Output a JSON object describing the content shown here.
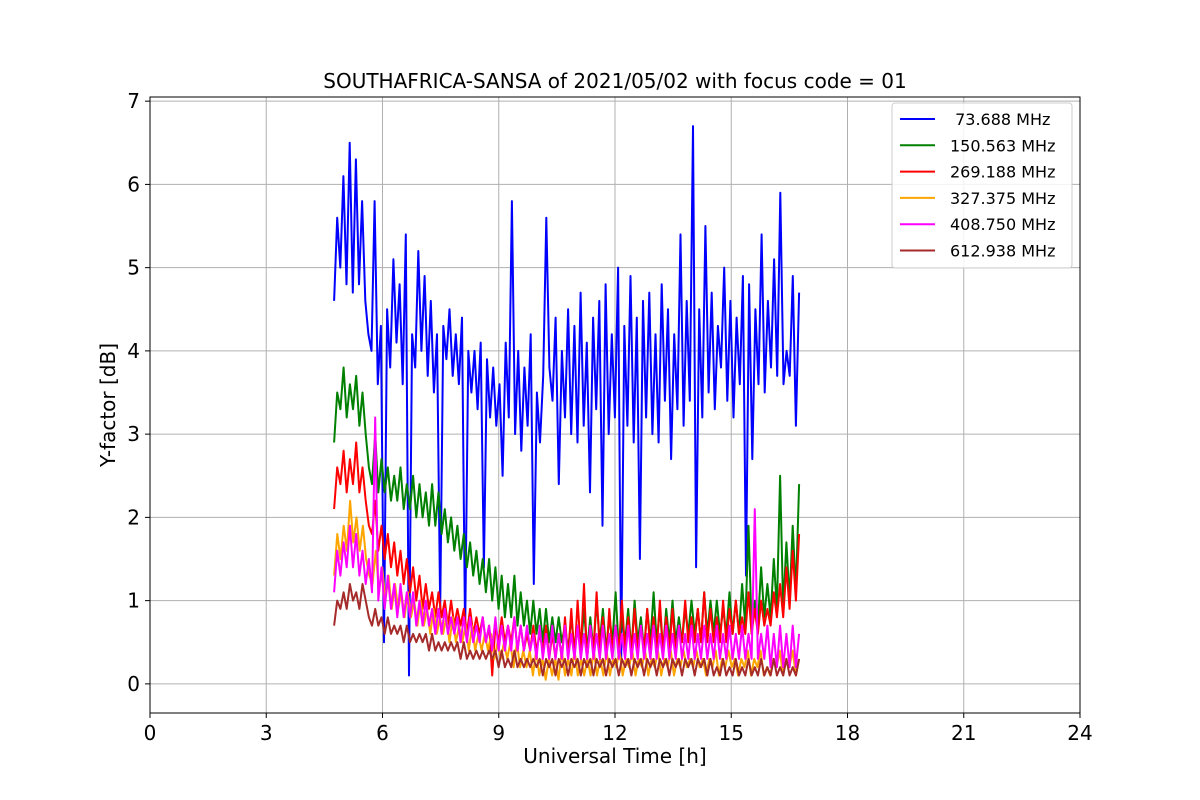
{
  "chart_data": {
    "type": "line",
    "title": "SOUTHAFRICA-SANSA of 2021/05/02 with focus code = 01",
    "xlabel": "Universal Time [h]",
    "ylabel": "Y-factor [dB]",
    "xlim": [
      0,
      24
    ],
    "ylim": [
      -0.35,
      7.05
    ],
    "xticks": [
      0,
      3,
      6,
      9,
      12,
      15,
      18,
      21,
      24
    ],
    "yticks": [
      0,
      1,
      2,
      3,
      4,
      5,
      6,
      7
    ],
    "xtick_labels": [
      "0",
      "3",
      "6",
      "9",
      "12",
      "15",
      "18",
      "21",
      "24"
    ],
    "ytick_labels": [
      "0",
      "1",
      "2",
      "3",
      "4",
      "5",
      "6",
      "7"
    ],
    "grid": true,
    "legend_position": "top-right",
    "x_start": 4.75,
    "x_end": 16.75,
    "series": [
      {
        "name": " 73.688 MHz",
        "color": "#0000ff",
        "values": [
          4.6,
          5.6,
          5.0,
          6.1,
          4.8,
          6.5,
          4.7,
          6.3,
          4.8,
          5.8,
          4.6,
          4.2,
          4.0,
          5.8,
          3.6,
          4.3,
          0.5,
          4.5,
          3.8,
          5.1,
          4.1,
          4.8,
          3.6,
          5.4,
          0.1,
          4.2,
          3.8,
          5.2,
          4.0,
          4.9,
          3.7,
          4.6,
          3.5,
          4.2,
          0.9,
          4.3,
          3.9,
          4.5,
          3.7,
          4.2,
          3.6,
          4.4,
          0.6,
          4.0,
          3.5,
          4.0,
          3.3,
          4.1,
          1.4,
          3.9,
          3.2,
          3.8,
          3.1,
          3.6,
          2.5,
          4.1,
          3.2,
          5.8,
          3.0,
          4.0,
          2.8,
          3.8,
          3.1,
          4.2,
          1.2,
          3.5,
          2.9,
          3.7,
          5.6,
          3.8,
          3.4,
          4.4,
          2.4,
          4.0,
          3.2,
          4.5,
          3.0,
          4.3,
          2.9,
          4.7,
          3.1,
          4.1,
          2.3,
          4.4,
          3.3,
          4.6,
          1.9,
          4.8,
          3.0,
          4.2,
          3.2,
          5.0,
          0.3,
          4.3,
          3.1,
          4.9,
          2.9,
          4.4,
          1.5,
          4.6,
          3.2,
          4.7,
          3.0,
          4.2,
          2.9,
          4.8,
          3.4,
          4.5,
          2.7,
          4.2,
          3.3,
          5.4,
          3.1,
          4.6,
          3.4,
          6.7,
          1.4,
          4.5,
          3.2,
          5.5,
          3.5,
          4.7,
          3.3,
          4.3,
          3.8,
          5.0,
          3.4,
          4.6,
          3.2,
          4.4,
          3.6,
          4.9,
          1.3,
          4.8,
          2.7,
          4.5,
          3.6,
          5.4,
          3.5,
          4.6,
          3.8,
          5.1,
          3.7,
          5.9,
          3.6,
          4.0,
          3.7,
          4.9,
          3.1,
          4.7
        ]
      },
      {
        "name": "150.563 MHz",
        "color": "#008000",
        "values": [
          2.9,
          3.5,
          3.3,
          3.8,
          3.2,
          3.6,
          3.3,
          3.7,
          3.1,
          3.5,
          3.0,
          2.6,
          2.4,
          3.0,
          2.3,
          2.7,
          2.3,
          2.6,
          2.2,
          2.5,
          2.2,
          2.6,
          2.1,
          2.4,
          2.1,
          2.5,
          2.0,
          2.4,
          2.0,
          2.3,
          1.9,
          2.4,
          1.9,
          2.3,
          1.8,
          2.1,
          1.7,
          2.0,
          1.6,
          1.9,
          1.5,
          1.8,
          1.4,
          1.7,
          1.3,
          1.6,
          1.2,
          1.5,
          1.1,
          1.5,
          1.0,
          1.4,
          0.9,
          1.3,
          0.8,
          1.2,
          0.8,
          1.3,
          0.7,
          1.1,
          0.7,
          1.0,
          0.6,
          1.0,
          0.6,
          0.9,
          0.5,
          0.9,
          0.5,
          0.8,
          0.5,
          0.8,
          0.5,
          0.7,
          0.4,
          0.8,
          0.4,
          0.7,
          0.4,
          0.9,
          0.4,
          0.8,
          0.4,
          1.0,
          0.5,
          0.9,
          0.4,
          0.8,
          0.5,
          1.1,
          0.4,
          0.8,
          0.5,
          0.9,
          0.4,
          1.0,
          0.5,
          0.8,
          0.4,
          0.9,
          0.5,
          1.1,
          0.5,
          0.9,
          0.4,
          0.9,
          0.5,
          1.0,
          0.5,
          0.8,
          0.5,
          0.9,
          0.6,
          1.0,
          0.6,
          0.9,
          0.5,
          1.1,
          0.6,
          1.0,
          0.6,
          1.0,
          0.6,
          0.9,
          0.6,
          1.1,
          0.6,
          1.0,
          0.6,
          1.2,
          0.7,
          1.9,
          0.7,
          1.0,
          0.7,
          1.4,
          0.8,
          1.2,
          0.8,
          1.5,
          0.9,
          2.5,
          0.9,
          1.7,
          1.0,
          1.9,
          1.1,
          2.4
        ]
      },
      {
        "name": "269.188 MHz",
        "color": "#ff0000",
        "values": [
          2.1,
          2.6,
          2.4,
          2.8,
          2.3,
          2.7,
          2.4,
          2.9,
          2.3,
          2.6,
          2.2,
          1.9,
          1.8,
          2.2,
          1.6,
          1.9,
          1.5,
          1.8,
          1.4,
          1.7,
          1.3,
          1.6,
          1.2,
          1.5,
          1.1,
          1.4,
          1.0,
          1.3,
          0.9,
          1.2,
          0.9,
          1.1,
          0.8,
          1.1,
          0.8,
          1.0,
          0.7,
          1.0,
          0.7,
          0.9,
          0.7,
          0.9,
          0.6,
          0.9,
          0.6,
          0.8,
          0.6,
          0.8,
          0.5,
          0.7,
          0.1,
          0.7,
          0.5,
          0.8,
          0.5,
          0.7,
          0.5,
          0.8,
          0.4,
          0.7,
          0.4,
          0.6,
          0.4,
          0.7,
          0.4,
          0.6,
          0.4,
          0.7,
          0.3,
          0.6,
          0.3,
          0.6,
          0.3,
          0.8,
          0.3,
          0.9,
          0.3,
          1.0,
          0.4,
          1.2,
          0.3,
          0.7,
          0.4,
          1.1,
          0.4,
          0.8,
          0.3,
          0.9,
          0.4,
          0.7,
          0.4,
          1.0,
          0.4,
          0.8,
          0.4,
          0.9,
          0.4,
          0.7,
          0.4,
          0.9,
          0.4,
          0.8,
          0.4,
          1.0,
          0.4,
          0.8,
          0.4,
          0.9,
          0.4,
          0.7,
          0.5,
          1.0,
          0.5,
          0.8,
          0.5,
          0.9,
          0.5,
          1.1,
          0.5,
          0.9,
          0.5,
          0.8,
          0.5,
          1.0,
          0.5,
          0.9,
          0.6,
          1.0,
          0.6,
          0.8,
          0.6,
          1.1,
          0.6,
          0.9,
          0.6,
          1.0,
          0.7,
          0.9,
          0.7,
          1.1,
          0.8,
          1.2,
          0.8,
          1.4,
          0.9,
          1.6,
          1.0,
          1.8
        ]
      },
      {
        "name": "327.375 MHz",
        "color": "#ffa500",
        "values": [
          1.3,
          1.8,
          1.5,
          1.9,
          1.6,
          2.2,
          1.7,
          2.0,
          1.6,
          1.9,
          1.5,
          1.3,
          1.2,
          1.6,
          1.1,
          1.4,
          1.0,
          1.3,
          0.9,
          1.2,
          0.9,
          1.1,
          0.8,
          1.1,
          0.8,
          1.0,
          0.7,
          1.0,
          0.7,
          0.9,
          0.6,
          0.9,
          0.6,
          0.8,
          0.6,
          0.8,
          0.5,
          0.8,
          0.5,
          0.7,
          0.5,
          0.7,
          0.4,
          0.7,
          0.4,
          0.6,
          0.4,
          0.6,
          0.4,
          0.6,
          0.3,
          0.5,
          0.3,
          0.5,
          0.3,
          0.5,
          0.2,
          0.5,
          0.2,
          0.4,
          0.2,
          0.4,
          0.1,
          0.4,
          0.1,
          0.3,
          0.05,
          0.3,
          0.1,
          0.3,
          0.05,
          0.4,
          0.1,
          0.3,
          0.1,
          0.4,
          0.1,
          0.3,
          0.1,
          0.3,
          0.1,
          0.4,
          0.1,
          0.3,
          0.1,
          0.4,
          0.1,
          0.3,
          0.2,
          0.4,
          0.1,
          0.3,
          0.2,
          0.4,
          0.1,
          0.3,
          0.2,
          0.4,
          0.1,
          0.3,
          0.2,
          0.4,
          0.1,
          0.3,
          0.2,
          0.4,
          0.1,
          0.3,
          0.2,
          0.4,
          0.2,
          0.3,
          0.2,
          0.4,
          0.2,
          0.3,
          0.1,
          0.3,
          0.2,
          0.4,
          0.1,
          0.3,
          0.2,
          0.4,
          0.2,
          0.3,
          0.1,
          0.3,
          0.2,
          0.4,
          0.1,
          0.3,
          0.2,
          0.4,
          0.1,
          0.2,
          0.1,
          0.3,
          0.2,
          0.4,
          0.1,
          0.3,
          0.2,
          0.4,
          0.1,
          0.3
        ]
      },
      {
        "name": "408.750 MHz",
        "color": "#ff00ff",
        "values": [
          1.1,
          1.6,
          1.3,
          1.7,
          1.4,
          1.9,
          1.4,
          1.8,
          1.3,
          1.6,
          1.2,
          1.5,
          1.1,
          3.2,
          1.0,
          1.4,
          0.9,
          1.3,
          0.9,
          1.2,
          0.8,
          1.2,
          0.8,
          1.1,
          0.8,
          1.1,
          0.7,
          1.0,
          0.7,
          1.0,
          0.7,
          0.9,
          0.6,
          0.9,
          0.6,
          0.9,
          0.6,
          0.8,
          0.6,
          0.8,
          0.5,
          0.8,
          0.5,
          0.8,
          0.5,
          0.7,
          0.5,
          0.8,
          0.5,
          0.7,
          0.4,
          0.8,
          0.4,
          0.7,
          0.4,
          0.7,
          0.4,
          0.8,
          0.4,
          0.7,
          0.4,
          0.7,
          0.4,
          0.6,
          0.3,
          0.7,
          0.3,
          0.6,
          0.3,
          0.7,
          0.3,
          0.6,
          0.3,
          0.7,
          0.3,
          0.6,
          0.3,
          0.7,
          0.3,
          0.6,
          0.3,
          0.7,
          0.3,
          0.6,
          0.3,
          0.7,
          0.3,
          0.6,
          0.3,
          0.7,
          0.3,
          0.6,
          0.3,
          0.7,
          0.3,
          0.6,
          0.3,
          0.7,
          0.3,
          0.6,
          0.3,
          0.7,
          0.3,
          0.6,
          0.3,
          0.7,
          0.3,
          0.6,
          0.3,
          0.7,
          0.3,
          0.6,
          0.3,
          0.7,
          0.3,
          0.6,
          0.3,
          0.7,
          0.3,
          0.6,
          0.3,
          0.7,
          0.3,
          0.6,
          0.3,
          0.7,
          0.3,
          0.6,
          0.3,
          0.7,
          0.3,
          0.6,
          0.3,
          2.1,
          0.3,
          0.6,
          0.3,
          0.7,
          0.2,
          0.6,
          0.2,
          0.7,
          0.2,
          0.6,
          0.2,
          0.7,
          0.2,
          0.6
        ]
      },
      {
        "name": "612.938 MHz",
        "color": "#a52a2a",
        "values": [
          0.7,
          1.0,
          0.9,
          1.1,
          0.9,
          1.2,
          1.0,
          1.1,
          0.9,
          1.2,
          1.0,
          0.8,
          0.7,
          0.9,
          0.7,
          0.8,
          0.6,
          0.8,
          0.6,
          0.7,
          0.6,
          0.7,
          0.5,
          0.7,
          0.5,
          0.6,
          0.5,
          0.6,
          0.5,
          0.6,
          0.4,
          0.6,
          0.4,
          0.5,
          0.4,
          0.5,
          0.4,
          0.5,
          0.4,
          0.5,
          0.3,
          0.5,
          0.3,
          0.4,
          0.3,
          0.4,
          0.3,
          0.4,
          0.3,
          0.4,
          0.3,
          0.4,
          0.2,
          0.4,
          0.2,
          0.3,
          0.2,
          0.4,
          0.2,
          0.3,
          0.2,
          0.3,
          0.2,
          0.3,
          0.2,
          0.3,
          0.1,
          0.3,
          0.2,
          0.3,
          0.1,
          0.3,
          0.2,
          0.3,
          0.1,
          0.3,
          0.2,
          0.3,
          0.1,
          0.3,
          0.2,
          0.3,
          0.1,
          0.3,
          0.2,
          0.3,
          0.1,
          0.3,
          0.2,
          0.3,
          0.1,
          0.3,
          0.2,
          0.3,
          0.1,
          0.3,
          0.2,
          0.3,
          0.1,
          0.3,
          0.2,
          0.3,
          0.1,
          0.3,
          0.2,
          0.3,
          0.1,
          0.3,
          0.2,
          0.3,
          0.1,
          0.3,
          0.2,
          0.3,
          0.1,
          0.3,
          0.2,
          0.3,
          0.1,
          0.3,
          0.1,
          0.2,
          0.1,
          0.3,
          0.1,
          0.2,
          0.1,
          0.3,
          0.1,
          0.2,
          0.1,
          0.3,
          0.1,
          0.2,
          0.1,
          0.3,
          0.1,
          0.2,
          0.1,
          0.3,
          0.1,
          0.2,
          0.1,
          0.3,
          0.1,
          0.2,
          0.1,
          0.3
        ]
      }
    ]
  }
}
